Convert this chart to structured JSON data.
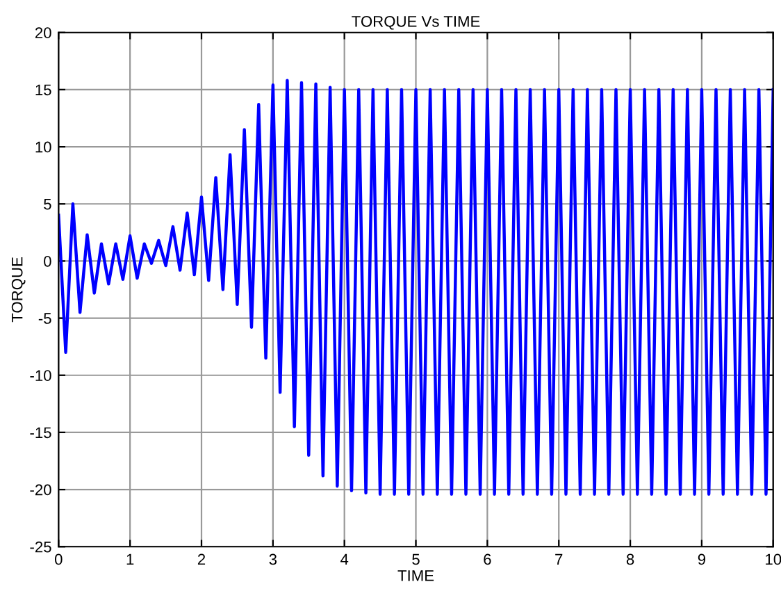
{
  "chart_data": {
    "type": "line",
    "title": "TORQUE Vs TIME",
    "xlabel": "TIME",
    "ylabel": "TORQUE",
    "x": [
      0,
      0.1,
      0.2,
      0.3,
      0.4,
      0.5,
      0.6,
      0.7,
      0.8,
      0.9,
      1,
      1.1,
      1.2,
      1.3,
      1.4,
      1.5,
      1.6,
      1.7,
      1.8,
      1.9,
      2,
      2.1,
      2.2,
      2.3,
      2.4,
      2.5,
      2.6,
      2.7,
      2.8,
      2.9,
      3,
      3.1,
      3.2,
      3.3,
      3.4,
      3.5,
      3.6,
      3.7,
      3.8,
      3.9,
      4,
      4.1,
      4.2,
      4.3,
      4.4,
      4.5,
      4.6,
      4.7,
      4.8,
      4.9,
      5,
      5.1,
      5.2,
      5.3,
      5.4,
      5.5,
      5.6,
      5.7,
      5.8,
      5.9,
      6,
      6.1,
      6.2,
      6.3,
      6.4,
      6.5,
      6.6,
      6.7,
      6.8,
      6.9,
      7,
      7.1,
      7.2,
      7.3,
      7.4,
      7.5,
      7.6,
      7.7,
      7.8,
      7.9,
      8,
      8.1,
      8.2,
      8.3,
      8.4,
      8.5,
      8.6,
      8.7,
      8.8,
      8.9,
      9,
      9.1,
      9.2,
      9.3,
      9.4,
      9.5,
      9.6,
      9.7,
      9.8,
      9.9,
      10
    ],
    "series": [
      {
        "color": "#0000ff",
        "values": [
          4,
          -8,
          5,
          -4.5,
          2.3,
          -2.8,
          1.5,
          -2,
          1.5,
          -1.6,
          2.2,
          -1.5,
          1.5,
          -0.2,
          1.8,
          -0.4,
          3,
          -0.8,
          4.2,
          -1.2,
          5.6,
          -1.7,
          7.3,
          -2.5,
          9.3,
          -3.8,
          11.5,
          -5.8,
          13.7,
          -8.5,
          15.4,
          -11.5,
          15.8,
          -14.5,
          15.6,
          -17,
          15.5,
          -18.8,
          15.2,
          -19.7,
          15,
          -20.1,
          15,
          -20.3,
          15,
          -20.4,
          15,
          -20.4,
          15,
          -20.4,
          15,
          -20.4,
          15,
          -20.4,
          15,
          -20.4,
          15,
          -20.4,
          15,
          -20.4,
          15,
          -20.4,
          15,
          -20.4,
          15,
          -20.4,
          15,
          -20.4,
          15,
          -20.4,
          15,
          -20.4,
          15,
          -20.4,
          15,
          -20.4,
          15,
          -20.4,
          15,
          -20.4,
          15,
          -20.4,
          15,
          -20.4,
          15,
          -20.4,
          15,
          -20.4,
          15,
          -20.4,
          15,
          -20.4,
          15,
          -20.4,
          15,
          -20.4,
          15,
          -20.4,
          15,
          -20.4,
          15
        ]
      }
    ],
    "xlim": [
      0,
      10
    ],
    "xticks": [
      0,
      1,
      2,
      3,
      4,
      5,
      6,
      7,
      8,
      9,
      10
    ],
    "ylim": [
      -25,
      20
    ],
    "yticks": [
      -25,
      -20,
      -15,
      -10,
      -5,
      0,
      5,
      10,
      15,
      20
    ],
    "grid": true,
    "marker": "none",
    "line_style": "solid"
  }
}
